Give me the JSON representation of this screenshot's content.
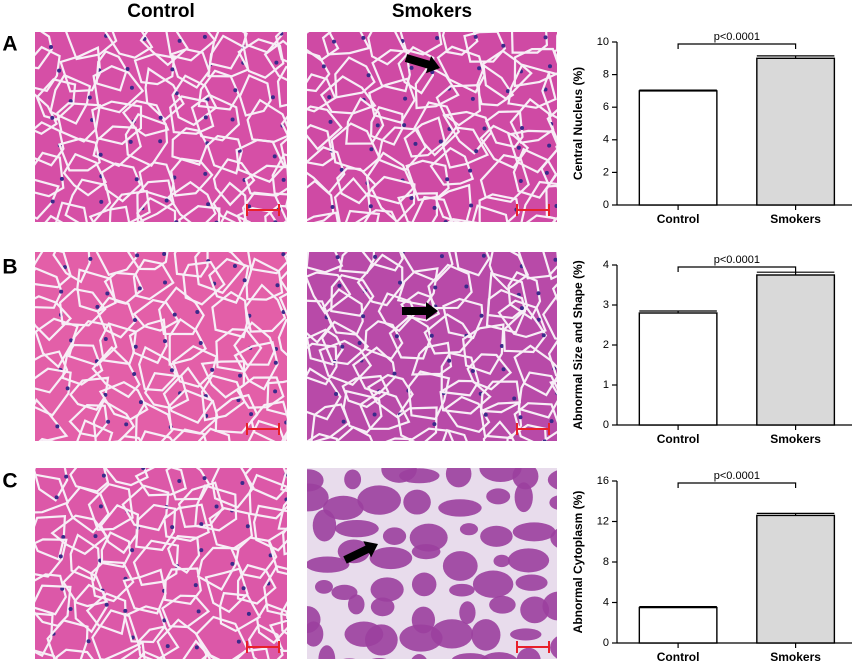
{
  "figure": {
    "column_titles": [
      "Control",
      "Smokers"
    ],
    "panel_labels": [
      "A",
      "B",
      "C"
    ]
  },
  "chart_data": [
    {
      "type": "bar",
      "ylabel": "Central Nucleus (%)",
      "categories": [
        "Control",
        "Smokers"
      ],
      "values": [
        7.0,
        9.0
      ],
      "errors": [
        0.05,
        0.15
      ],
      "colors": [
        "#ffffff",
        "#d9d9d9"
      ],
      "ylim": [
        0,
        10
      ],
      "yticks": [
        0,
        2,
        4,
        6,
        8,
        10
      ],
      "annotation": "p<0.0001"
    },
    {
      "type": "bar",
      "ylabel": "Abnormal Size and Shape (%)",
      "categories": [
        "Control",
        "Smokers"
      ],
      "values": [
        2.8,
        3.75
      ],
      "errors": [
        0.05,
        0.07
      ],
      "colors": [
        "#ffffff",
        "#d9d9d9"
      ],
      "ylim": [
        0,
        4
      ],
      "yticks": [
        0,
        1,
        2,
        3,
        4
      ],
      "annotation": "p<0.0001"
    },
    {
      "type": "bar",
      "ylabel": "Abnormal Cytoplasm (%)",
      "categories": [
        "Control",
        "Smokers"
      ],
      "values": [
        3.5,
        12.6
      ],
      "errors": [
        0.1,
        0.2
      ],
      "colors": [
        "#ffffff",
        "#d9d9d9"
      ],
      "ylim": [
        0,
        16
      ],
      "yticks": [
        0,
        4,
        8,
        12,
        16
      ],
      "annotation": "p<0.0001"
    }
  ]
}
